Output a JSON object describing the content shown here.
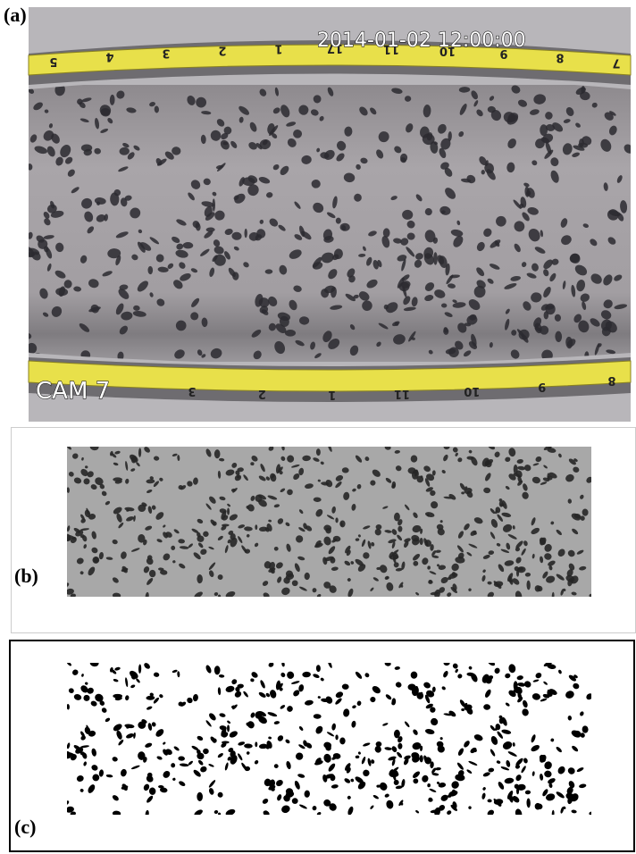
{
  "panels": [
    {
      "label": "(a)",
      "timestamp": "2014-01-02 12:00:00",
      "camera": "CAM 7",
      "tape_top": [
        "5",
        "4",
        "3",
        "2",
        "1",
        "17",
        "11",
        "10",
        "9",
        "8",
        "7"
      ],
      "tape_bottom": [
        "3",
        "2",
        "1",
        "11",
        "10",
        "9",
        "8"
      ]
    },
    {
      "label": "(b)"
    },
    {
      "label": "(c)"
    }
  ]
}
